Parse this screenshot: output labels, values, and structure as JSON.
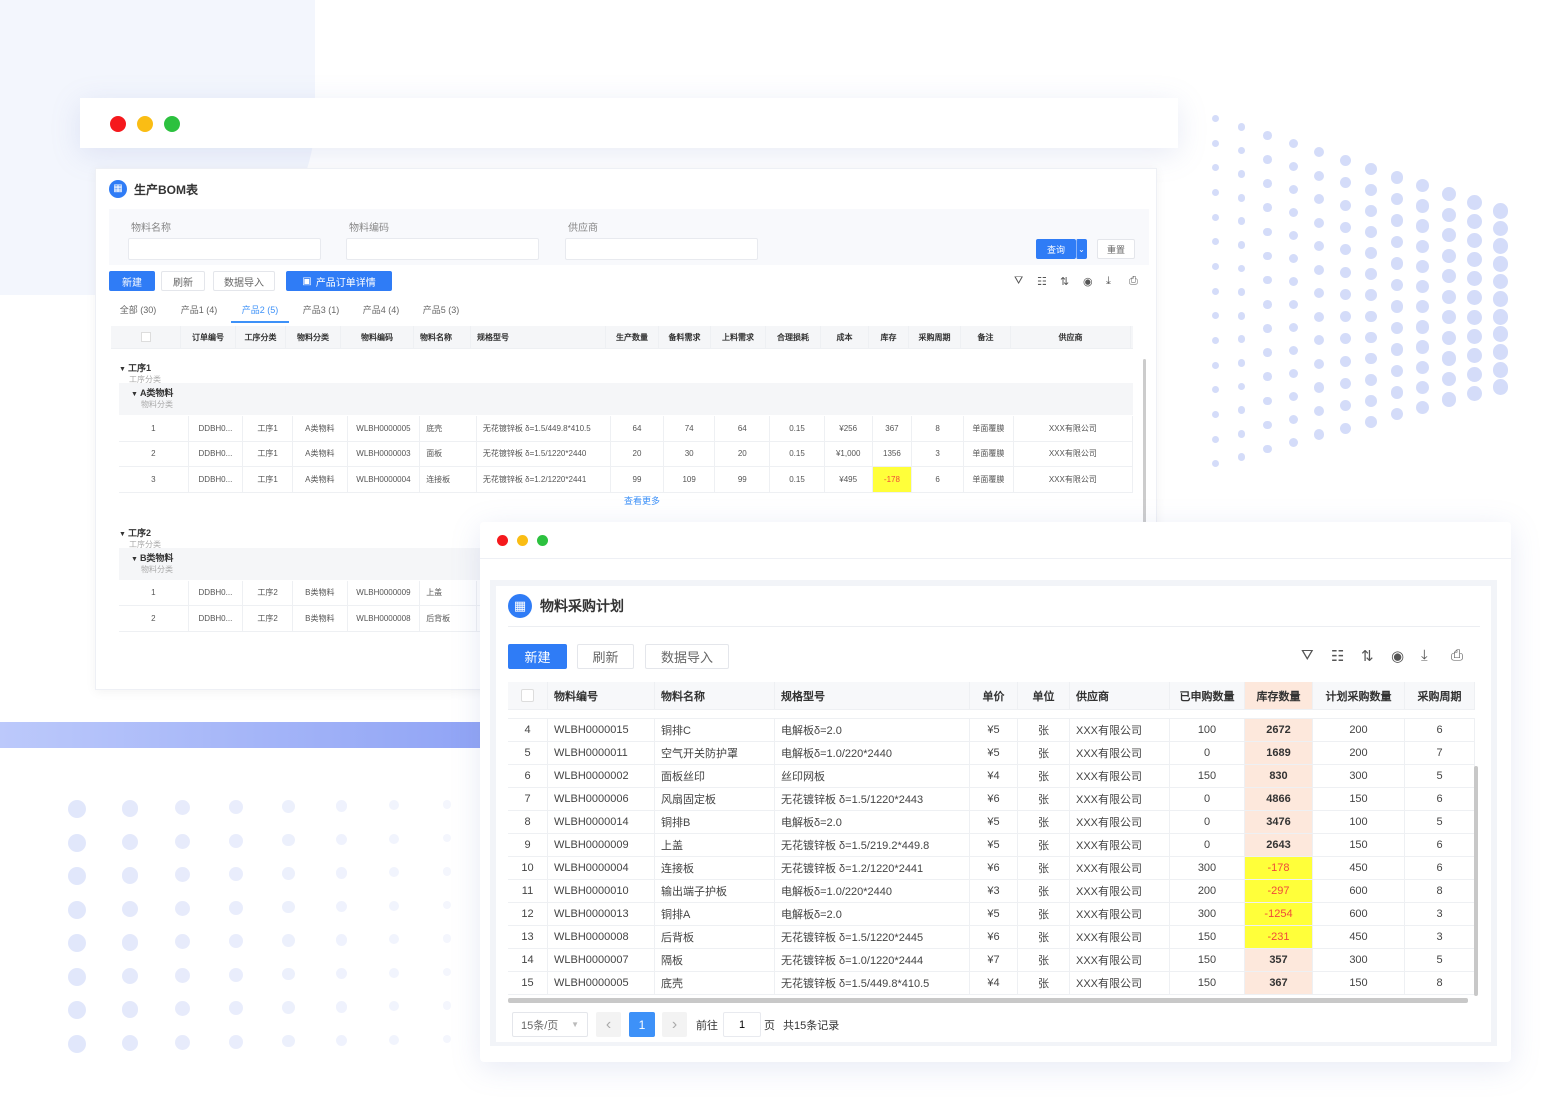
{
  "colors": {
    "primary": "#2f7cf6",
    "negative_bg": "#ffff3a",
    "negative_text": "#f04a3a",
    "stock_bg": "#fde8dc",
    "traffic": [
      "#f5191d",
      "#fabd14",
      "#2cc13f"
    ]
  },
  "bom": {
    "title": "生产BOM表",
    "filters": [
      {
        "label": "物料名称",
        "value": ""
      },
      {
        "label": "物料编码",
        "value": ""
      },
      {
        "label": "供应商",
        "value": ""
      }
    ],
    "query_label": "查询",
    "reset_label": "重置",
    "toolbar": {
      "new": "新建",
      "refresh": "刷新",
      "import": "数据导入",
      "order_detail": "产品订单详情"
    },
    "tabs": [
      "全部 (30)",
      "产品1 (4)",
      "产品2 (5)",
      "产品3 (1)",
      "产品4 (4)",
      "产品5 (3)"
    ],
    "active_tab": 2,
    "icons": [
      "filter-icon",
      "columns-icon",
      "sort-icon",
      "eye-icon",
      "download-icon",
      "print-icon"
    ],
    "columns": [
      "",
      "订单编号",
      "工序分类",
      "物料分类",
      "物料编码",
      "物料名称",
      "规格型号",
      "生产数量",
      "备料需求",
      "上料需求",
      "合理损耗",
      "成本",
      "库存",
      "采购周期",
      "备注",
      "供应商"
    ],
    "groups": [
      {
        "name": "工序1",
        "sub": "工序分类",
        "cat": "A类物料",
        "catsub": "物料分类",
        "rows": [
          [
            "1",
            "DDBH0...",
            "工序1",
            "A类物料",
            "WLBH0000005",
            "底壳",
            "无花镀锌板 δ=1.5/449.8*410.5",
            "64",
            "74",
            "64",
            "0.15",
            "¥256",
            "367",
            "8",
            "单面覆膜",
            "XXX有限公司"
          ],
          [
            "2",
            "DDBH0...",
            "工序1",
            "A类物料",
            "WLBH0000003",
            "面板",
            "无花镀锌板 δ=1.5/1220*2440",
            "20",
            "30",
            "20",
            "0.15",
            "¥1,000",
            "1356",
            "3",
            "单面覆膜",
            "XXX有限公司"
          ],
          [
            "3",
            "DDBH0...",
            "工序1",
            "A类物料",
            "WLBH0000004",
            "连接板",
            "无花镀锌板 δ=1.2/1220*2441",
            "99",
            "109",
            "99",
            "0.15",
            "¥495",
            "-178",
            "6",
            "单面覆膜",
            "XXX有限公司"
          ]
        ],
        "more": "查看更多"
      },
      {
        "name": "工序2",
        "sub": "工序分类",
        "cat": "B类物料",
        "catsub": "物料分类",
        "rows": [
          [
            "1",
            "DDBH0...",
            "工序2",
            "B类物料",
            "WLBH0000009",
            "上盖"
          ],
          [
            "2",
            "DDBH0...",
            "工序2",
            "B类物料",
            "WLBH0000008",
            "后背板"
          ]
        ]
      }
    ]
  },
  "plan": {
    "title": "物料采购计划",
    "toolbar": {
      "new": "新建",
      "refresh": "刷新",
      "import": "数据导入"
    },
    "icons": [
      "filter-icon",
      "columns-icon",
      "sort-icon",
      "eye-icon",
      "download-icon",
      "print-icon"
    ],
    "columns": [
      "",
      "物料编号",
      "物料名称",
      "规格型号",
      "单价",
      "单位",
      "供应商",
      "已申购数量",
      "库存数量",
      "计划采购数量",
      "采购周期"
    ],
    "rows": [
      [
        "4",
        "WLBH0000015",
        "铜排C",
        "电解板δ=2.0",
        "¥5",
        "张",
        "XXX有限公司",
        "100",
        "2672",
        "200",
        "6"
      ],
      [
        "5",
        "WLBH0000011",
        "空气开关防护罩",
        "电解板δ=1.0/220*2440",
        "¥5",
        "张",
        "XXX有限公司",
        "0",
        "1689",
        "200",
        "7"
      ],
      [
        "6",
        "WLBH0000002",
        "面板丝印",
        "丝印网板",
        "¥4",
        "张",
        "XXX有限公司",
        "150",
        "830",
        "300",
        "5"
      ],
      [
        "7",
        "WLBH0000006",
        "风扇固定板",
        "无花镀锌板 δ=1.5/1220*2443",
        "¥6",
        "张",
        "XXX有限公司",
        "0",
        "4866",
        "150",
        "6"
      ],
      [
        "8",
        "WLBH0000014",
        "铜排B",
        "电解板δ=2.0",
        "¥5",
        "张",
        "XXX有限公司",
        "0",
        "3476",
        "100",
        "5"
      ],
      [
        "9",
        "WLBH0000009",
        "上盖",
        "无花镀锌板 δ=1.5/219.2*449.8",
        "¥5",
        "张",
        "XXX有限公司",
        "0",
        "2643",
        "150",
        "6"
      ],
      [
        "10",
        "WLBH0000004",
        "连接板",
        "无花镀锌板 δ=1.2/1220*2441",
        "¥6",
        "张",
        "XXX有限公司",
        "300",
        "-178",
        "450",
        "6"
      ],
      [
        "11",
        "WLBH0000010",
        "输出端子护板",
        "电解板δ=1.0/220*2440",
        "¥3",
        "张",
        "XXX有限公司",
        "200",
        "-297",
        "600",
        "8"
      ],
      [
        "12",
        "WLBH0000013",
        "铜排A",
        "电解板δ=2.0",
        "¥5",
        "张",
        "XXX有限公司",
        "300",
        "-1254",
        "600",
        "3"
      ],
      [
        "13",
        "WLBH0000008",
        "后背板",
        "无花镀锌板 δ=1.5/1220*2445",
        "¥6",
        "张",
        "XXX有限公司",
        "150",
        "-231",
        "450",
        "3"
      ],
      [
        "14",
        "WLBH0000007",
        "隔板",
        "无花镀锌板 δ=1.0/1220*2444",
        "¥7",
        "张",
        "XXX有限公司",
        "150",
        "357",
        "300",
        "5"
      ],
      [
        "15",
        "WLBH0000005",
        "底壳",
        "无花镀锌板 δ=1.5/449.8*410.5",
        "¥4",
        "张",
        "XXX有限公司",
        "150",
        "367",
        "150",
        "8"
      ]
    ],
    "pagination": {
      "page_size": "15条/页",
      "current": "1",
      "goto_label": "前往",
      "goto_value": "1",
      "page_unit": "页",
      "total": "共15条记录"
    }
  }
}
